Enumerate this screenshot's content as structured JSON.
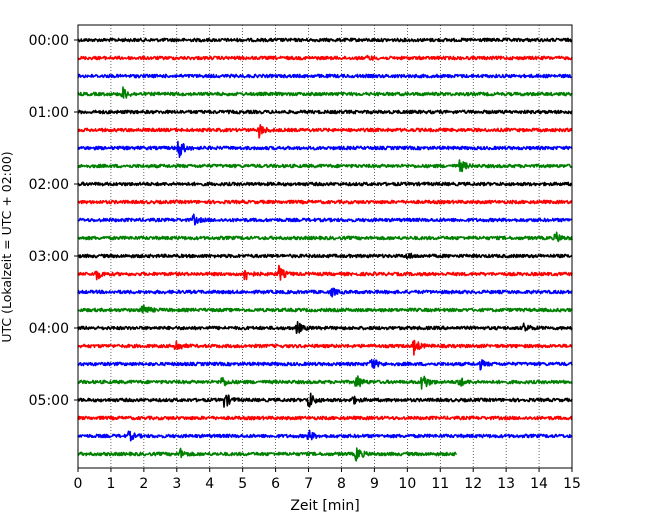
{
  "chart_data": {
    "type": "line",
    "title": "",
    "xlabel": "Zeit  [min]",
    "ylabel": "UTC (Lokalzeit = UTC + 02:00)",
    "xlim": [
      0,
      15
    ],
    "x_ticks": [
      "0",
      "1",
      "2",
      "3",
      "4",
      "5",
      "6",
      "7",
      "8",
      "9",
      "10",
      "11",
      "12",
      "13",
      "14",
      "15"
    ],
    "y_tick_labels": [
      "00:00",
      "01:00",
      "02:00",
      "03:00",
      "04:00",
      "05:00"
    ],
    "y_tick_rows": [
      0,
      4,
      8,
      12,
      16,
      20
    ],
    "grid": "vertical dotted at each minute",
    "trace_duration_min": 15,
    "last_trace_end_min": 11.5,
    "colors": [
      "#000000",
      "#ff0000",
      "#0000ff",
      "#008000"
    ],
    "traces": [
      {
        "start": "00:00",
        "color": "#000000",
        "events": []
      },
      {
        "start": "00:15",
        "color": "#ff0000",
        "events": [
          {
            "t": 8.8,
            "amp": 2
          }
        ]
      },
      {
        "start": "00:30",
        "color": "#0000ff",
        "events": []
      },
      {
        "start": "00:45",
        "color": "#008000",
        "events": [
          {
            "t": 1.35,
            "amp": 7
          }
        ]
      },
      {
        "start": "01:00",
        "color": "#000000",
        "events": []
      },
      {
        "start": "01:15",
        "color": "#ff0000",
        "events": [
          {
            "t": 5.5,
            "amp": 7
          }
        ]
      },
      {
        "start": "01:30",
        "color": "#0000ff",
        "events": [
          {
            "t": 3.05,
            "amp": 12
          }
        ]
      },
      {
        "start": "01:45",
        "color": "#008000",
        "events": [
          {
            "t": 11.6,
            "amp": 7
          }
        ]
      },
      {
        "start": "02:00",
        "color": "#000000",
        "events": []
      },
      {
        "start": "02:15",
        "color": "#ff0000",
        "events": []
      },
      {
        "start": "02:30",
        "color": "#0000ff",
        "events": [
          {
            "t": 3.5,
            "amp": 5
          }
        ]
      },
      {
        "start": "02:45",
        "color": "#008000",
        "events": [
          {
            "t": 14.5,
            "amp": 6
          }
        ]
      },
      {
        "start": "03:00",
        "color": "#000000",
        "events": [
          {
            "t": 10.0,
            "amp": 3
          }
        ]
      },
      {
        "start": "03:15",
        "color": "#ff0000",
        "events": [
          {
            "t": 0.55,
            "amp": 6
          },
          {
            "t": 5.05,
            "amp": 8
          },
          {
            "t": 6.1,
            "amp": 8
          }
        ]
      },
      {
        "start": "03:30",
        "color": "#0000ff",
        "events": [
          {
            "t": 7.7,
            "amp": 4
          }
        ]
      },
      {
        "start": "03:45",
        "color": "#008000",
        "events": [
          {
            "t": 1.95,
            "amp": 8
          }
        ]
      },
      {
        "start": "04:00",
        "color": "#000000",
        "events": [
          {
            "t": 6.65,
            "amp": 6
          },
          {
            "t": 13.55,
            "amp": 5
          }
        ]
      },
      {
        "start": "04:15",
        "color": "#ff0000",
        "events": [
          {
            "t": 2.95,
            "amp": 7
          },
          {
            "t": 10.2,
            "amp": 8
          }
        ]
      },
      {
        "start": "04:30",
        "color": "#0000ff",
        "events": [
          {
            "t": 8.9,
            "amp": 8
          },
          {
            "t": 12.2,
            "amp": 5
          }
        ]
      },
      {
        "start": "04:45",
        "color": "#008000",
        "events": [
          {
            "t": 4.35,
            "amp": 6
          },
          {
            "t": 8.45,
            "amp": 8
          },
          {
            "t": 10.45,
            "amp": 11
          },
          {
            "t": 11.55,
            "amp": 6
          }
        ]
      },
      {
        "start": "05:00",
        "color": "#000000",
        "events": [
          {
            "t": 4.45,
            "amp": 9
          },
          {
            "t": 7.0,
            "amp": 10
          },
          {
            "t": 8.3,
            "amp": 5
          }
        ]
      },
      {
        "start": "05:15",
        "color": "#ff0000",
        "events": []
      },
      {
        "start": "05:30",
        "color": "#0000ff",
        "events": [
          {
            "t": 1.55,
            "amp": 5
          },
          {
            "t": 7.0,
            "amp": 6
          }
        ]
      },
      {
        "start": "05:45",
        "color": "#008000",
        "events": [
          {
            "t": 3.1,
            "amp": 5
          },
          {
            "t": 8.45,
            "amp": 8
          }
        ]
      }
    ]
  }
}
